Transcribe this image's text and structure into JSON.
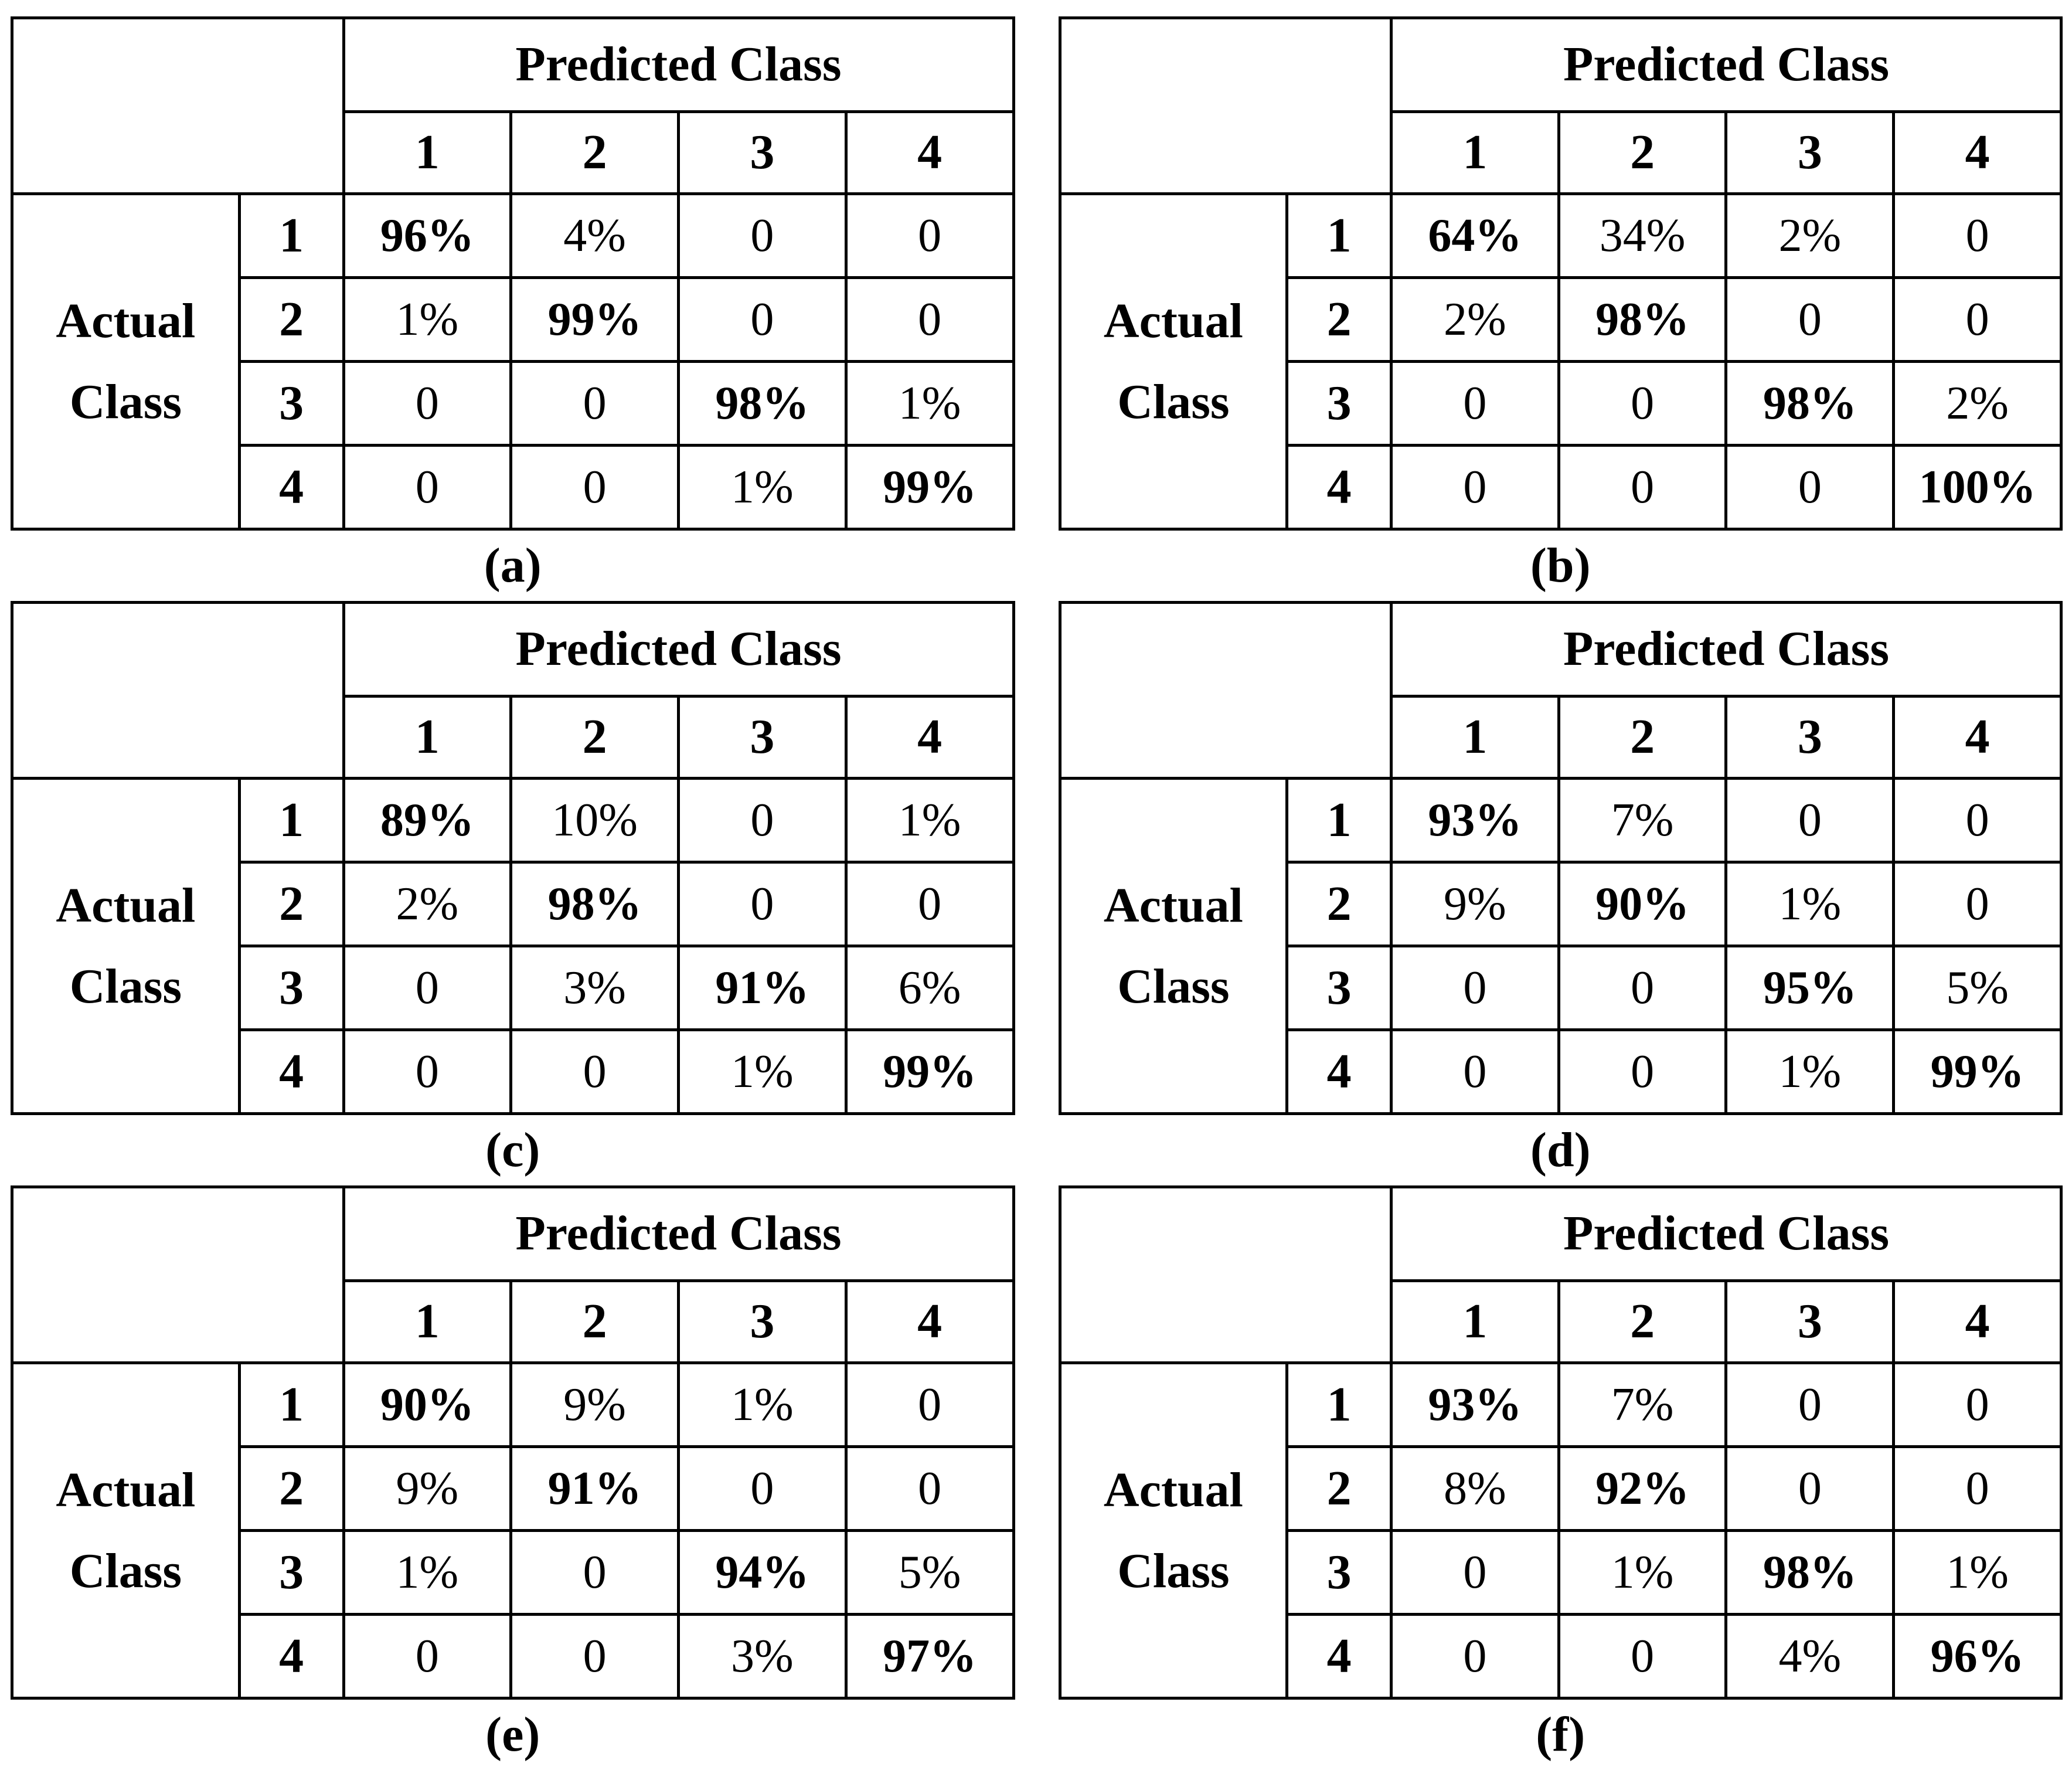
{
  "colors": {
    "background": "#ffffff",
    "text": "#000000",
    "border": "#000000"
  },
  "labels": {
    "predicted_axis": "Predicted Class",
    "actual_axis": "Actual Class",
    "actual_axis_lines": [
      "Actual",
      "Class"
    ],
    "column_headers": [
      "1",
      "2",
      "3",
      "4"
    ],
    "row_headers": [
      "1",
      "2",
      "3",
      "4"
    ]
  },
  "chart_data": [
    {
      "type": "table",
      "caption": "(a)",
      "col_axis": "Predicted Class",
      "row_axis": "Actual Class",
      "columns": [
        "1",
        "2",
        "3",
        "4"
      ],
      "rows": [
        "1",
        "2",
        "3",
        "4"
      ],
      "values": [
        [
          "96%",
          "4%",
          "0",
          "0"
        ],
        [
          "1%",
          "99%",
          "0",
          "0"
        ],
        [
          "0",
          "0",
          "98%",
          "1%"
        ],
        [
          "0",
          "0",
          "1%",
          "99%"
        ]
      ],
      "bold_diagonal": true
    },
    {
      "type": "table",
      "caption": "(b)",
      "col_axis": "Predicted Class",
      "row_axis": "Actual Class",
      "columns": [
        "1",
        "2",
        "3",
        "4"
      ],
      "rows": [
        "1",
        "2",
        "3",
        "4"
      ],
      "values": [
        [
          "64%",
          "34%",
          "2%",
          "0"
        ],
        [
          "2%",
          "98%",
          "0",
          "0"
        ],
        [
          "0",
          "0",
          "98%",
          "2%"
        ],
        [
          "0",
          "0",
          "0",
          "100%"
        ]
      ],
      "bold_diagonal": true
    },
    {
      "type": "table",
      "caption": "(c)",
      "col_axis": "Predicted Class",
      "row_axis": "Actual Class",
      "columns": [
        "1",
        "2",
        "3",
        "4"
      ],
      "rows": [
        "1",
        "2",
        "3",
        "4"
      ],
      "values": [
        [
          "89%",
          "10%",
          "0",
          "1%"
        ],
        [
          "2%",
          "98%",
          "0",
          "0"
        ],
        [
          "0",
          "3%",
          "91%",
          "6%"
        ],
        [
          "0",
          "0",
          "1%",
          "99%"
        ]
      ],
      "bold_diagonal": true
    },
    {
      "type": "table",
      "caption": "(d)",
      "col_axis": "Predicted Class",
      "row_axis": "Actual Class",
      "columns": [
        "1",
        "2",
        "3",
        "4"
      ],
      "rows": [
        "1",
        "2",
        "3",
        "4"
      ],
      "values": [
        [
          "93%",
          "7%",
          "0",
          "0"
        ],
        [
          "9%",
          "90%",
          "1%",
          "0"
        ],
        [
          "0",
          "0",
          "95%",
          "5%"
        ],
        [
          "0",
          "0",
          "1%",
          "99%"
        ]
      ],
      "bold_diagonal": true
    },
    {
      "type": "table",
      "caption": "(e)",
      "col_axis": "Predicted Class",
      "row_axis": "Actual Class",
      "columns": [
        "1",
        "2",
        "3",
        "4"
      ],
      "rows": [
        "1",
        "2",
        "3",
        "4"
      ],
      "values": [
        [
          "90%",
          "9%",
          "1%",
          "0"
        ],
        [
          "9%",
          "91%",
          "0",
          "0"
        ],
        [
          "1%",
          "0",
          "94%",
          "5%"
        ],
        [
          "0",
          "0",
          "3%",
          "97%"
        ]
      ],
      "bold_diagonal": true
    },
    {
      "type": "table",
      "caption": "(f)",
      "col_axis": "Predicted Class",
      "row_axis": "Actual Class",
      "columns": [
        "1",
        "2",
        "3",
        "4"
      ],
      "rows": [
        "1",
        "2",
        "3",
        "4"
      ],
      "values": [
        [
          "93%",
          "7%",
          "0",
          "0"
        ],
        [
          "8%",
          "92%",
          "0",
          "0"
        ],
        [
          "0",
          "1%",
          "98%",
          "1%"
        ],
        [
          "0",
          "0",
          "4%",
          "96%"
        ]
      ],
      "bold_diagonal": true
    }
  ]
}
